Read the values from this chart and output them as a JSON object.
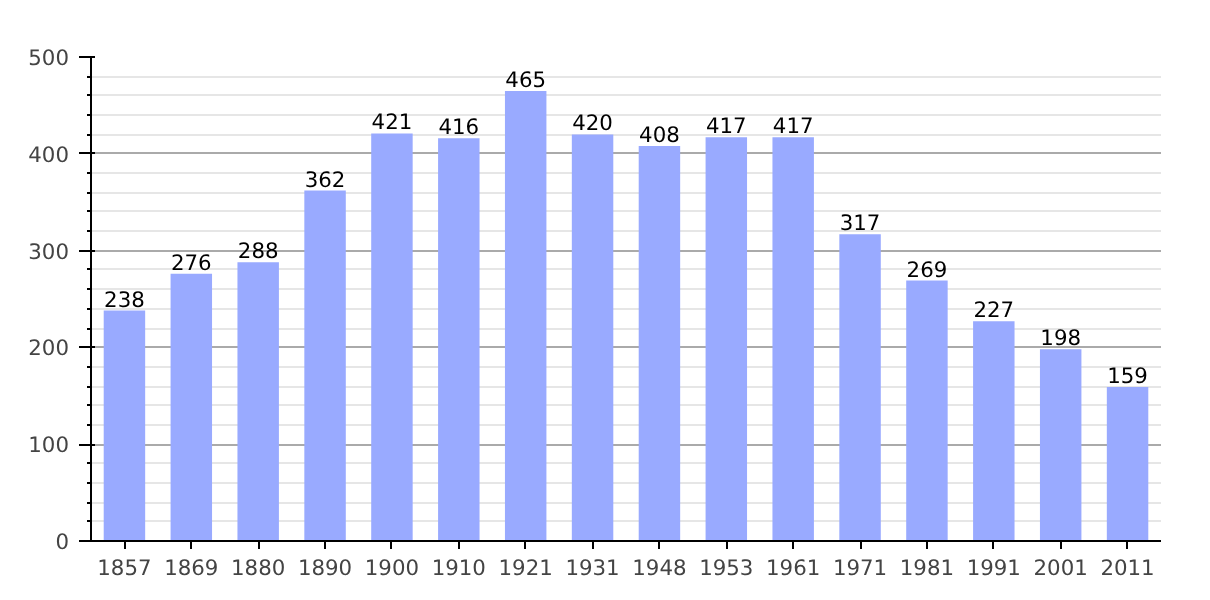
{
  "chart_data": {
    "type": "bar",
    "categories": [
      "1857",
      "1869",
      "1880",
      "1890",
      "1900",
      "1910",
      "1921",
      "1931",
      "1948",
      "1953",
      "1961",
      "1971",
      "1981",
      "1991",
      "2001",
      "2011"
    ],
    "values": [
      238,
      276,
      288,
      362,
      421,
      416,
      465,
      420,
      408,
      417,
      417,
      317,
      269,
      227,
      198,
      159
    ],
    "color": "#99aaff",
    "ylim": [
      0,
      500
    ],
    "yticks": [
      0,
      100,
      200,
      300,
      400,
      500
    ],
    "grid": "y",
    "data_labels": true
  }
}
